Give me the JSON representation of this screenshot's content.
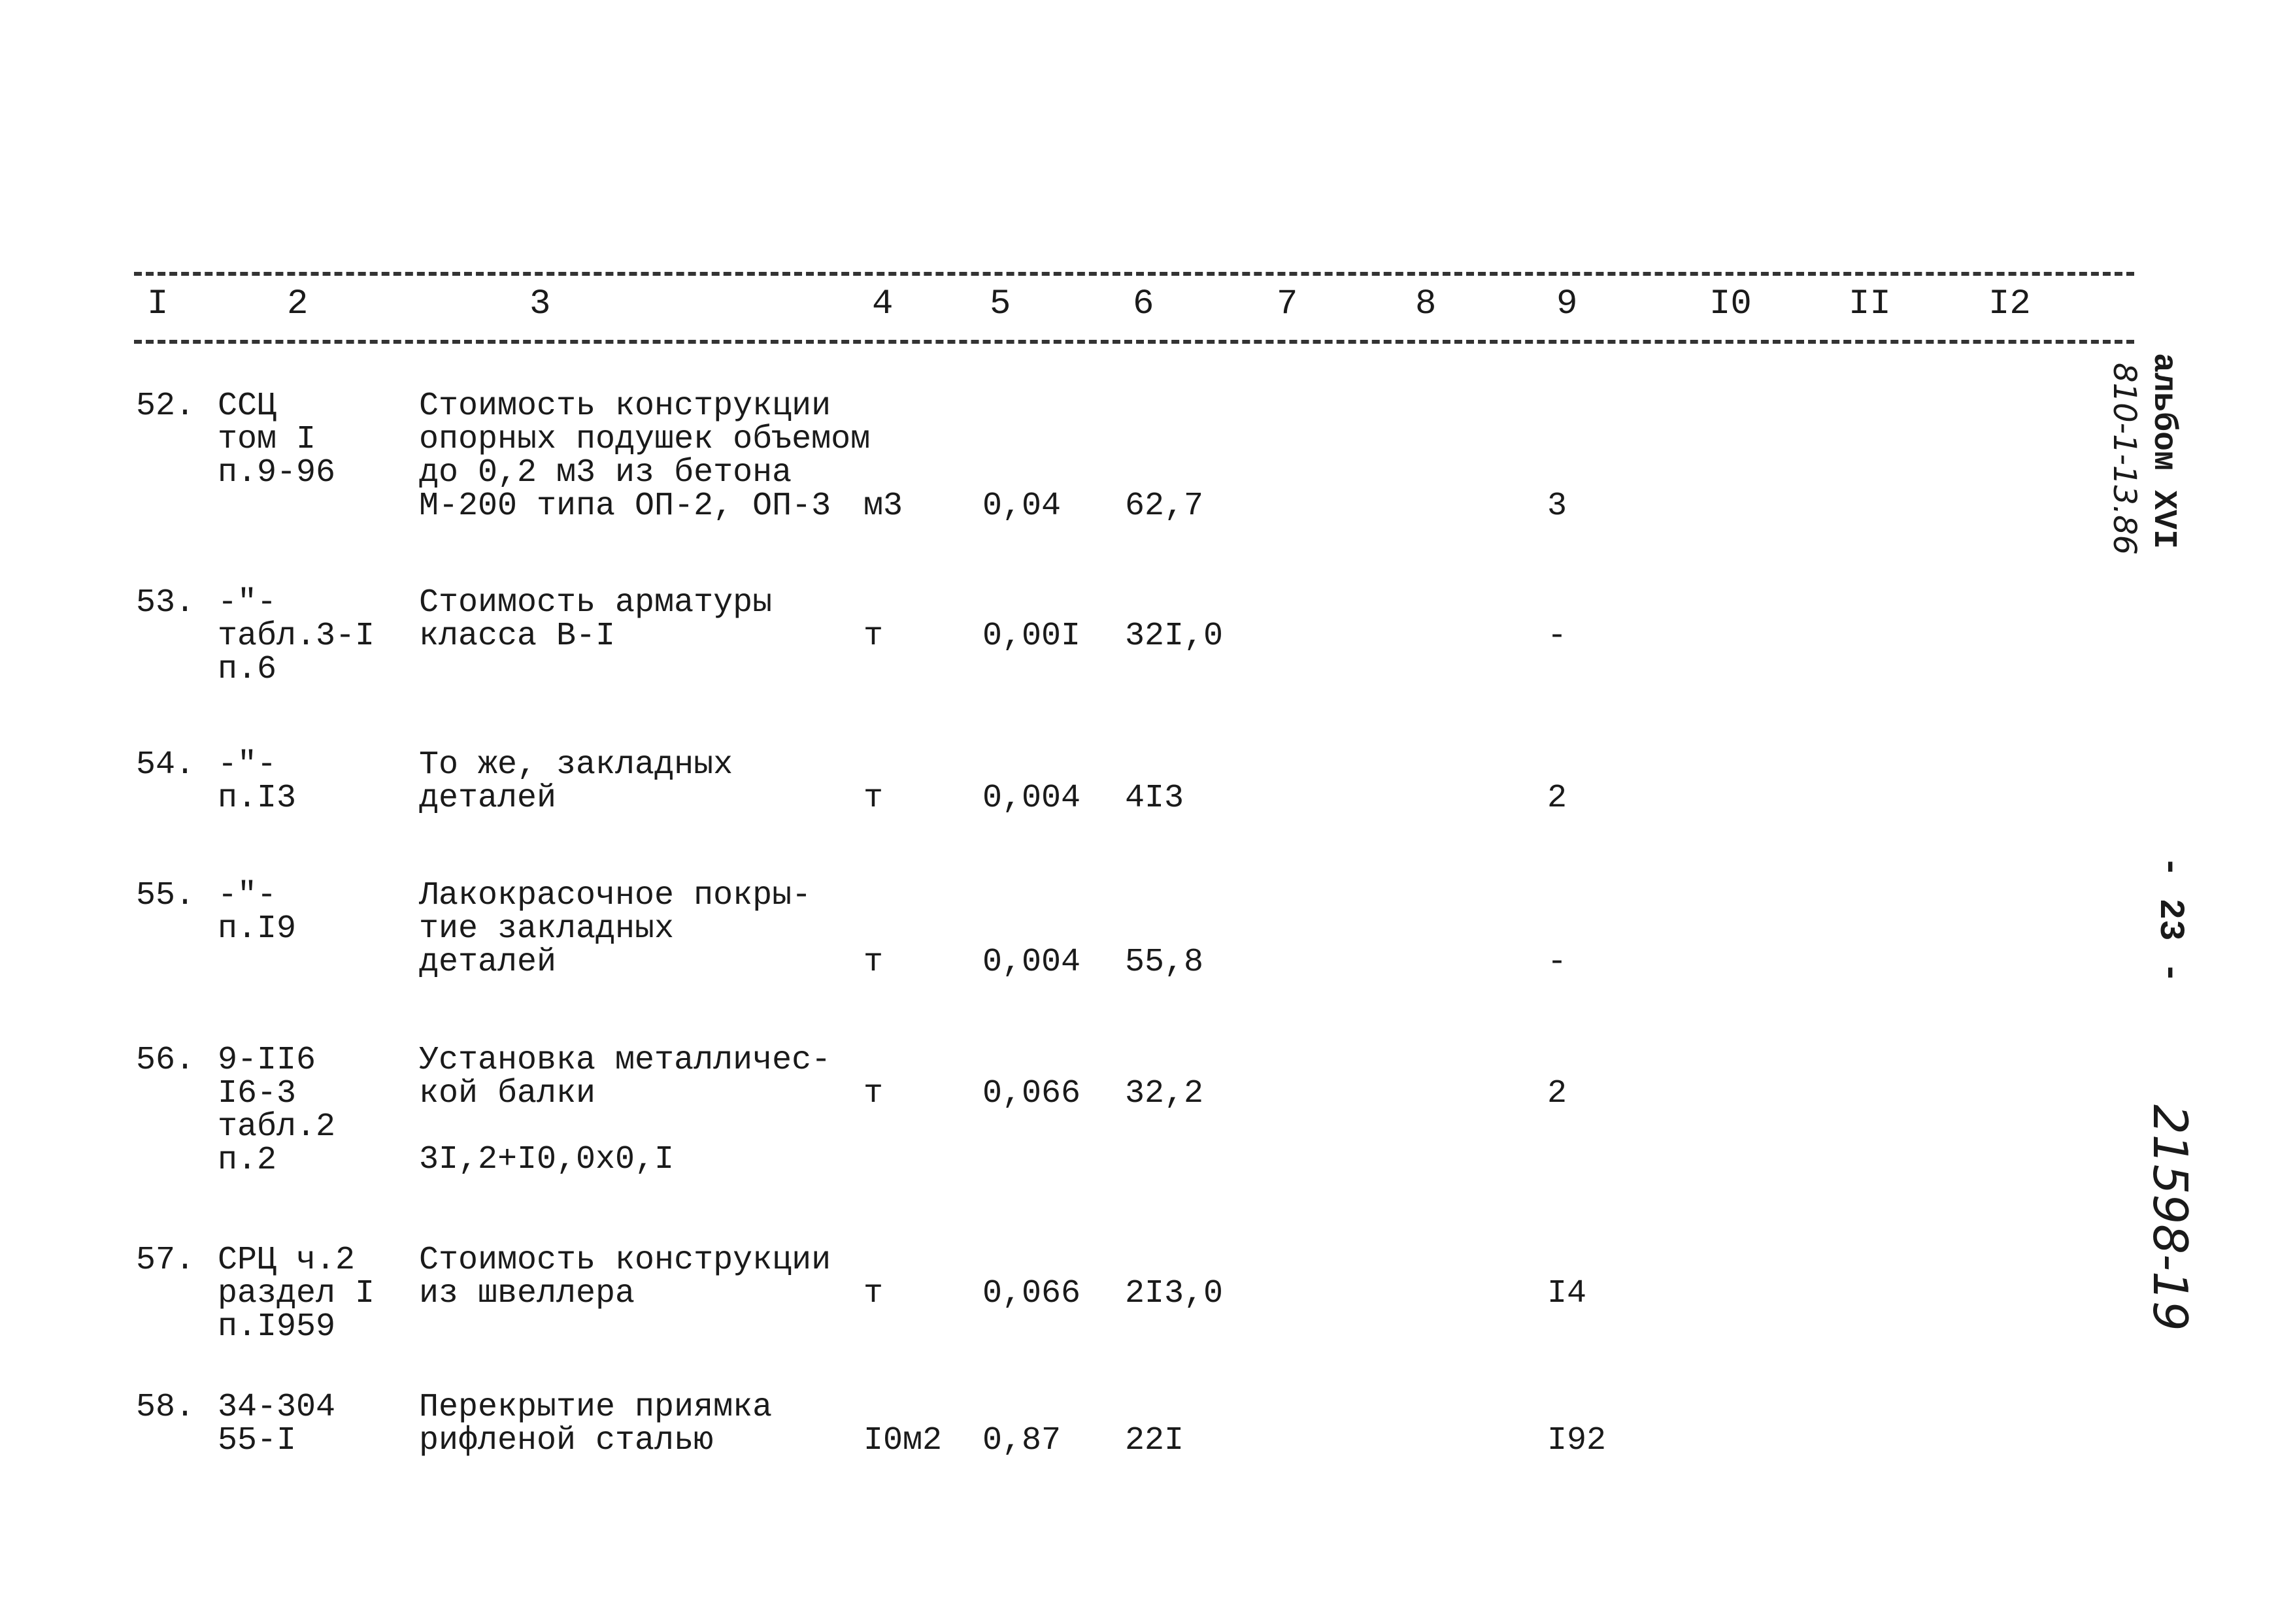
{
  "header": [
    "I",
    "2",
    "3",
    "4",
    "5",
    "6",
    "7",
    "8",
    "9",
    "I0",
    "II",
    "I2"
  ],
  "rows": [
    {
      "num": "52.",
      "ref": [
        "ССЦ",
        "том I",
        "п.9-96"
      ],
      "desc": [
        "Стоимость конструкции",
        "опорных подушек объемом",
        "до 0,2 м3 из бетона",
        "М-200 типа ОП-2, ОП-3"
      ],
      "unit": "м3",
      "qty": "0,04",
      "price": "62,7",
      "col9": "3"
    },
    {
      "num": "53.",
      "ref": [
        "-\"-",
        "табл.3-I",
        "п.6"
      ],
      "desc": [
        "Стоимость арматуры",
        "класса В-I"
      ],
      "unit": "т",
      "qty": "0,00I",
      "price": "32I,0",
      "col9": "-"
    },
    {
      "num": "54.",
      "ref": [
        "-\"-",
        "п.I3"
      ],
      "desc": [
        "То же, закладных",
        "деталей"
      ],
      "unit": "т",
      "qty": "0,004",
      "price": "4I3",
      "col9": "2"
    },
    {
      "num": "55.",
      "ref": [
        "-\"-",
        "п.I9"
      ],
      "desc": [
        "Лакокрасочное покры-",
        "тие закладных",
        "деталей"
      ],
      "unit": "т",
      "qty": "0,004",
      "price": "55,8",
      "col9": "-"
    },
    {
      "num": "56.",
      "ref": [
        "9-II6",
        "I6-3",
        "табл.2",
        "п.2"
      ],
      "desc": [
        "Установка металличес-",
        "кой балки"
      ],
      "formula": "3I,2+I0,0x0,I",
      "unit": "т",
      "qty": "0,066",
      "price": "32,2",
      "col9": "2"
    },
    {
      "num": "57.",
      "ref": [
        "СРЦ ч.2",
        "раздел I",
        "п.I959"
      ],
      "desc": [
        "Стоимость конструкции",
        "из швеллера"
      ],
      "unit": "т",
      "qty": "0,066",
      "price": "2I3,0",
      "col9": "I4"
    },
    {
      "num": "58.",
      "ref": [
        "34-304",
        "55-I"
      ],
      "desc": [
        "Перекрытие приямка",
        "рифленой сталью"
      ],
      "unit": "I0м2",
      "qty": "0,87",
      "price": "22I",
      "col9": "I92"
    }
  ],
  "margin": {
    "album": "альбом XVI",
    "series": "810-1-13.86",
    "page": "- 23 -",
    "inventory": "21598-19"
  }
}
